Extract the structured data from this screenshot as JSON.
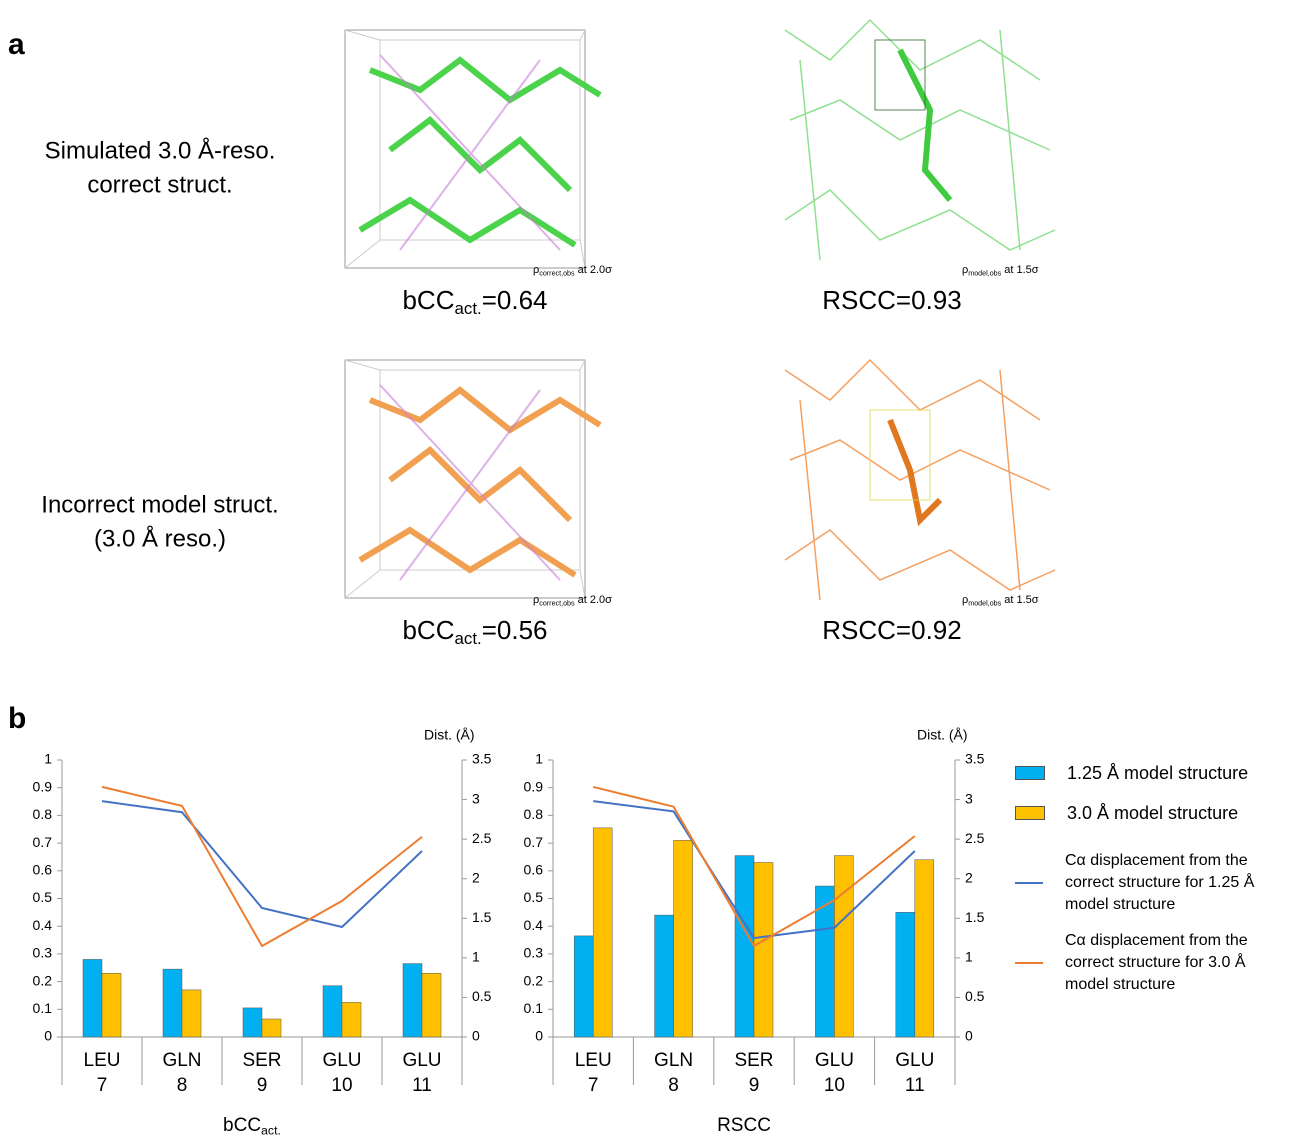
{
  "panel_a": {
    "label": "a",
    "rows": [
      {
        "label": [
          "Simulated 3.0 Å-reso.",
          "correct struct."
        ],
        "density_left": {
          "base": "ρ",
          "sub": "correct,obs",
          "rest": " at 2.0σ"
        },
        "density_right": {
          "base": "ρ",
          "sub": "model,obs",
          "rest": " at 1.5σ"
        },
        "metric_left": {
          "base": "bCC",
          "sub": "act.",
          "rest": "=0.64"
        },
        "metric_right": "RSCC=0.93"
      },
      {
        "label": [
          "Incorrect model struct.",
          "(3.0 Å reso.)"
        ],
        "density_left": {
          "base": "ρ",
          "sub": "correct,obs",
          "rest": " at 2.0σ"
        },
        "density_right": {
          "base": "ρ",
          "sub": "model,obs",
          "rest": " at 1.5σ"
        },
        "metric_left": {
          "base": "bCC",
          "sub": "act.",
          "rest": "=0.56"
        },
        "metric_right": "RSCC=0.92"
      }
    ]
  },
  "panel_b": {
    "label": "b"
  },
  "chart_data": [
    {
      "type": "combo",
      "categories": [
        [
          "LEU",
          "7"
        ],
        [
          "GLN",
          "8"
        ],
        [
          "SER",
          "9"
        ],
        [
          "GLU",
          "10"
        ],
        [
          "GLU",
          "11"
        ]
      ],
      "xlabel": {
        "base": "bCC",
        "sub": "act."
      },
      "ylim": [
        0,
        1
      ],
      "yticks": [
        0,
        0.1,
        0.2,
        0.3,
        0.4,
        0.5,
        0.6,
        0.7,
        0.8,
        0.9,
        1
      ],
      "y2lim": [
        0,
        3.5
      ],
      "y2ticks": [
        0,
        0.5,
        1,
        1.5,
        2,
        2.5,
        3,
        3.5
      ],
      "y2label": "Dist. (Å)",
      "series": [
        {
          "type": "bar",
          "color": "#00b0f0",
          "values": [
            0.28,
            0.245,
            0.105,
            0.185,
            0.265
          ]
        },
        {
          "type": "bar",
          "color": "#ffc000",
          "values": [
            0.23,
            0.17,
            0.065,
            0.125,
            0.23
          ]
        },
        {
          "type": "line",
          "axis": "y2",
          "color": "#4472c4",
          "values": [
            2.98,
            2.84,
            1.63,
            1.39,
            2.35
          ]
        },
        {
          "type": "line",
          "axis": "y2",
          "color": "#ed7d31",
          "values": [
            3.16,
            2.92,
            1.15,
            1.72,
            2.53
          ]
        }
      ]
    },
    {
      "type": "combo",
      "categories": [
        [
          "LEU",
          "7"
        ],
        [
          "GLN",
          "8"
        ],
        [
          "SER",
          "9"
        ],
        [
          "GLU",
          "10"
        ],
        [
          "GLU",
          "11"
        ]
      ],
      "xlabel": "RSCC",
      "ylim": [
        0,
        1
      ],
      "yticks": [
        0,
        0.1,
        0.2,
        0.3,
        0.4,
        0.5,
        0.6,
        0.7,
        0.8,
        0.9,
        1
      ],
      "y2lim": [
        0,
        3.5
      ],
      "y2ticks": [
        0,
        0.5,
        1,
        1.5,
        2,
        2.5,
        3,
        3.5
      ],
      "y2label": "Dist. (Å)",
      "series": [
        {
          "type": "bar",
          "name": "1.25 Å model structure",
          "color": "#00b0f0",
          "values": [
            0.365,
            0.44,
            0.655,
            0.545,
            0.45
          ]
        },
        {
          "type": "bar",
          "name": "3.0 Å model structure",
          "color": "#ffc000",
          "values": [
            0.755,
            0.71,
            0.63,
            0.655,
            0.64
          ]
        },
        {
          "type": "line",
          "axis": "y2",
          "name": "Cα displacement from the correct structure for 1.25 Å model structure",
          "color": "#4472c4",
          "values": [
            2.98,
            2.85,
            1.25,
            1.38,
            2.35
          ]
        },
        {
          "type": "line",
          "axis": "y2",
          "name": "Cα displacement from the correct structure for 3.0 Å model structure",
          "color": "#ed7d31",
          "values": [
            3.16,
            2.91,
            1.15,
            1.73,
            2.54
          ]
        }
      ]
    }
  ]
}
